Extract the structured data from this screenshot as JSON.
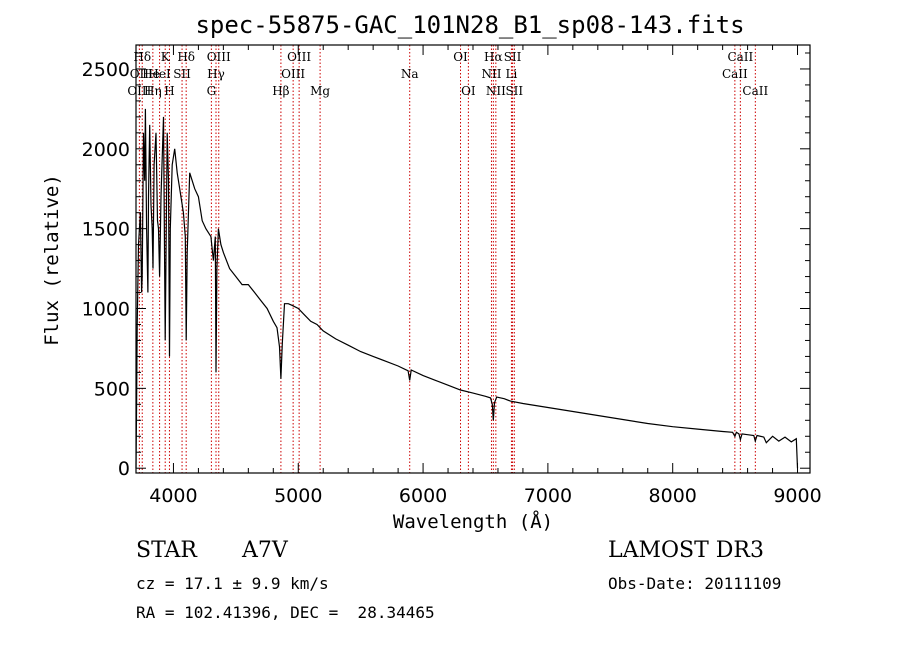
{
  "chart_data": {
    "type": "line",
    "title": "spec-55875-GAC_101N28_B1_sp08-143.fits",
    "xlabel": "Wavelength (Å)",
    "ylabel": "Flux (relative)",
    "xlim": [
      3700,
      9100
    ],
    "ylim": [
      -30,
      2650
    ],
    "xticks": [
      4000,
      5000,
      6000,
      7000,
      8000,
      9000
    ],
    "xtick_labels": [
      "4000",
      "5000",
      "6000",
      "7000",
      "8000",
      "9000"
    ],
    "yticks": [
      0,
      500,
      1000,
      1500,
      2000,
      2500
    ],
    "ytick_labels": [
      "0",
      "500",
      "1000",
      "1500",
      "2000",
      "2500"
    ],
    "series": [
      {
        "name": "flux",
        "x": [
          3700,
          3705,
          3710,
          3720,
          3735,
          3745,
          3750,
          3760,
          3770,
          3775,
          3785,
          3795,
          3800,
          3810,
          3820,
          3830,
          3836,
          3845,
          3860,
          3872,
          3880,
          3889,
          3900,
          3920,
          3934,
          3950,
          3960,
          3968,
          3975,
          3990,
          4010,
          4030,
          4050,
          4080,
          4095,
          4102,
          4110,
          4130,
          4150,
          4170,
          4200,
          4230,
          4260,
          4300,
          4320,
          4335,
          4341,
          4348,
          4360,
          4380,
          4400,
          4450,
          4500,
          4550,
          4600,
          4650,
          4700,
          4750,
          4800,
          4830,
          4850,
          4861,
          4872,
          4890,
          4920,
          4950,
          5000,
          5050,
          5100,
          5150,
          5200,
          5300,
          5400,
          5500,
          5600,
          5700,
          5800,
          5880,
          5893,
          5905,
          6000,
          6100,
          6200,
          6300,
          6400,
          6500,
          6540,
          6555,
          6563,
          6572,
          6590,
          6650,
          6700,
          6800,
          7000,
          7200,
          7400,
          7600,
          7800,
          8000,
          8200,
          8400,
          8480,
          8498,
          8510,
          8530,
          8542,
          8555,
          8600,
          8650,
          8662,
          8675,
          8730,
          8750,
          8800,
          8850,
          8900,
          8950,
          8990,
          9000
        ],
        "y": [
          0,
          400,
          900,
          1400,
          1600,
          1100,
          1200,
          2100,
          1800,
          2250,
          1500,
          1100,
          1700,
          2150,
          1650,
          1500,
          1250,
          1900,
          2100,
          1550,
          1500,
          1200,
          1700,
          2200,
          800,
          2100,
          1800,
          700,
          1500,
          1900,
          2000,
          1850,
          1750,
          1600,
          1450,
          800,
          1350,
          1850,
          1800,
          1750,
          1700,
          1550,
          1500,
          1450,
          1300,
          1450,
          600,
          1250,
          1500,
          1400,
          1350,
          1250,
          1200,
          1150,
          1150,
          1100,
          1050,
          1000,
          920,
          880,
          760,
          560,
          780,
          1030,
          1030,
          1020,
          1000,
          960,
          920,
          900,
          860,
          810,
          770,
          730,
          700,
          670,
          640,
          610,
          550,
          615,
          580,
          550,
          520,
          490,
          470,
          450,
          440,
          400,
          300,
          410,
          445,
          435,
          420,
          405,
          380,
          355,
          330,
          305,
          280,
          260,
          245,
          230,
          225,
          200,
          225,
          215,
          180,
          215,
          210,
          205,
          170,
          205,
          195,
          160,
          200,
          170,
          195,
          165,
          185,
          0
        ]
      }
    ],
    "line_labels": [
      {
        "text": "Hδ",
        "x": 3750,
        "row": 1
      },
      {
        "text": "K",
        "x": 3934,
        "row": 1
      },
      {
        "text": "Hδ",
        "x": 4102,
        "row": 1
      },
      {
        "text": "OIII",
        "x": 4363,
        "row": 1
      },
      {
        "text": "OIII",
        "x": 5007,
        "row": 1
      },
      {
        "text": "OI",
        "x": 6300,
        "row": 1
      },
      {
        "text": "Hα",
        "x": 6563,
        "row": 1
      },
      {
        "text": "SII",
        "x": 6717,
        "row": 1
      },
      {
        "text": "CaII",
        "x": 8542,
        "row": 1
      },
      {
        "text": "OII",
        "x": 3727,
        "row": 2
      },
      {
        "text": "He",
        "x": 3820,
        "row": 2
      },
      {
        "text": "HeI",
        "x": 3889,
        "row": 2
      },
      {
        "text": "SII",
        "x": 4069,
        "row": 2
      },
      {
        "text": "Hγ",
        "x": 4341,
        "row": 2
      },
      {
        "text": "OIII",
        "x": 4959,
        "row": 2
      },
      {
        "text": "Na",
        "x": 5893,
        "row": 2
      },
      {
        "text": "NII",
        "x": 6548,
        "row": 2
      },
      {
        "text": "Li",
        "x": 6708,
        "row": 2
      },
      {
        "text": "CaII",
        "x": 8498,
        "row": 2
      },
      {
        "text": "OIII",
        "x": 3727,
        "row": 3
      },
      {
        "text": "Hη",
        "x": 3835,
        "row": 3
      },
      {
        "text": "H",
        "x": 3968,
        "row": 3
      },
      {
        "text": "G",
        "x": 4304,
        "row": 3
      },
      {
        "text": "Hβ",
        "x": 4861,
        "row": 3
      },
      {
        "text": "Mg",
        "x": 5175,
        "row": 3
      },
      {
        "text": "OI",
        "x": 6363,
        "row": 3
      },
      {
        "text": "NII",
        "x": 6583,
        "row": 3
      },
      {
        "text": "SII",
        "x": 6731,
        "row": 3
      },
      {
        "text": "CaII",
        "x": 8662,
        "row": 3
      }
    ],
    "reference_lines_x": [
      3727,
      3750,
      3835,
      3889,
      3934,
      3968,
      4069,
      4102,
      4304,
      4341,
      4363,
      4861,
      4959,
      5007,
      5175,
      5893,
      6300,
      6363,
      6548,
      6563,
      6583,
      6708,
      6717,
      6731,
      8498,
      8542,
      8662
    ],
    "colors": {
      "spectrum": "#000000",
      "lines": "#cc0000",
      "axes": "#000000"
    }
  },
  "info": {
    "obj_class": "STAR",
    "subclass": "A7V",
    "survey": "LAMOST DR3",
    "cz": "cz = 17.1 ± 9.9 km/s",
    "obs_date": "Obs-Date: 20111109",
    "coords": "RA = 102.41396, DEC =  28.34465"
  }
}
